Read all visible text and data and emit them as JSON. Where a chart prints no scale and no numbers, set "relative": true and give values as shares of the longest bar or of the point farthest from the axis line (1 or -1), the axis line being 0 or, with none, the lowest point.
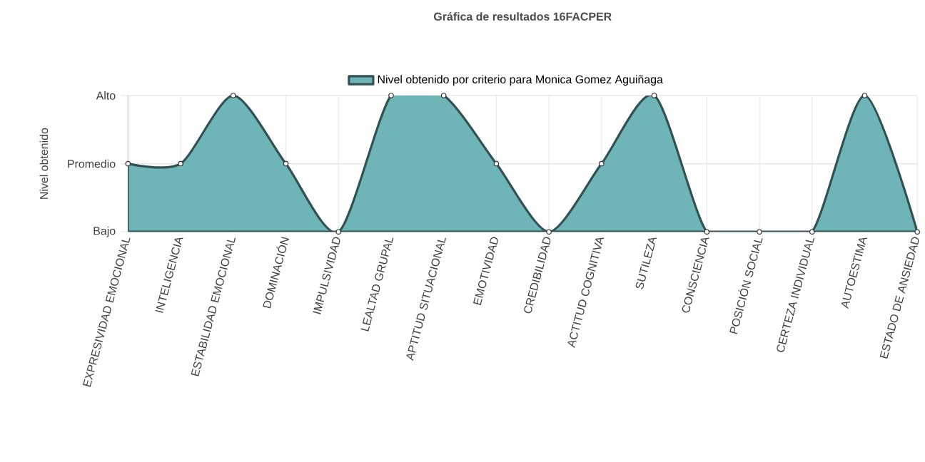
{
  "chart_data": {
    "type": "area",
    "title": "Gráfica de resultados 16FACPER",
    "ylabel": "Nivel obtenido",
    "categories": [
      "EXPRESIVIDAD EMOCIONAL",
      "INTELIGENCIA",
      "ESTABILIDAD EMOCIONAL",
      "DOMINACIÓN",
      "IMPULSIVIDAD",
      "LEALTAD GRUPAL",
      "APTITUD SITUACIONAL",
      "EMOTIVIDAD",
      "CREDIBILIDAD",
      "ACTITUD COGNITIVA",
      "SUTILEZA",
      "CONSCIENCIA",
      "POSICIÓN SOCIAL",
      "CERTEZA INDIVIDUAL",
      "AUTOESTIMA",
      "ESTADO DE ANSIEDAD"
    ],
    "series": [
      {
        "name": "Nivel obtenido por criterio para Monica Gomez Aguiñaga",
        "color": "#6fb4b7",
        "values": [
          0.5,
          0.5,
          1,
          0.5,
          0,
          1,
          1,
          0.5,
          0,
          0.5,
          1,
          0,
          0,
          0,
          1,
          0
        ]
      }
    ],
    "relative": true,
    "ref_lines": [
      {
        "axis": "y",
        "value": 0,
        "label": "Bajo",
        "color": "#e4e4e4"
      },
      {
        "axis": "y",
        "value": 0.5,
        "label": "Promedio",
        "color": "#e4e4e4"
      },
      {
        "axis": "y",
        "value": 1,
        "label": "Alto",
        "color": "#e4e4e4"
      }
    ],
    "grid": "x",
    "legend": "top",
    "marker": "circle",
    "line_style": "solid"
  }
}
